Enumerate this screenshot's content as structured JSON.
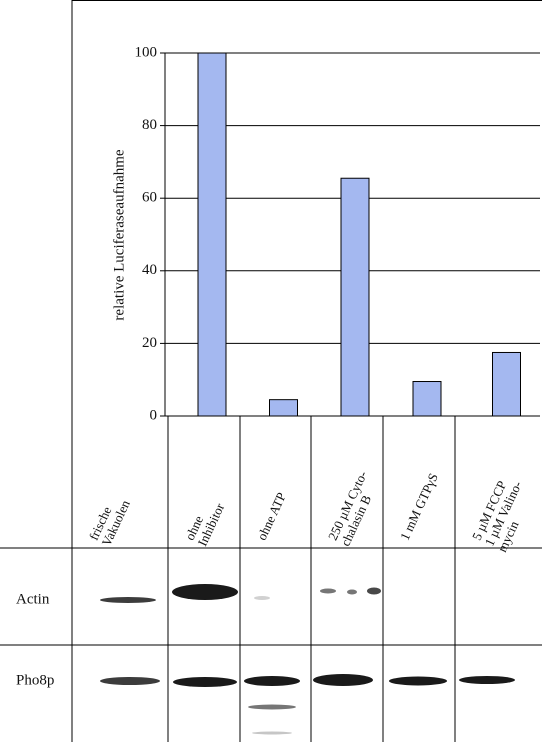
{
  "chart_data": {
    "type": "bar",
    "y_label": "relative Luciferaseaufnahme",
    "categories": [
      "frische\nVakuolen",
      "ohne\nInhibitor",
      "ohne ATP",
      "250 µM Cyto-\nchalasin B",
      "1 mM GTPγS",
      "5 µM FCCP\n1 µM Valino-\nmycin"
    ],
    "values": [
      null,
      100,
      4.5,
      65.5,
      9.5,
      17.5
    ],
    "color": "#a4b8f0",
    "ylim": [
      0,
      100
    ],
    "yticks": [
      0,
      20,
      40,
      60,
      80,
      100
    ],
    "grid": true,
    "blot_rows": [
      "Actin",
      "Pho8p"
    ]
  }
}
